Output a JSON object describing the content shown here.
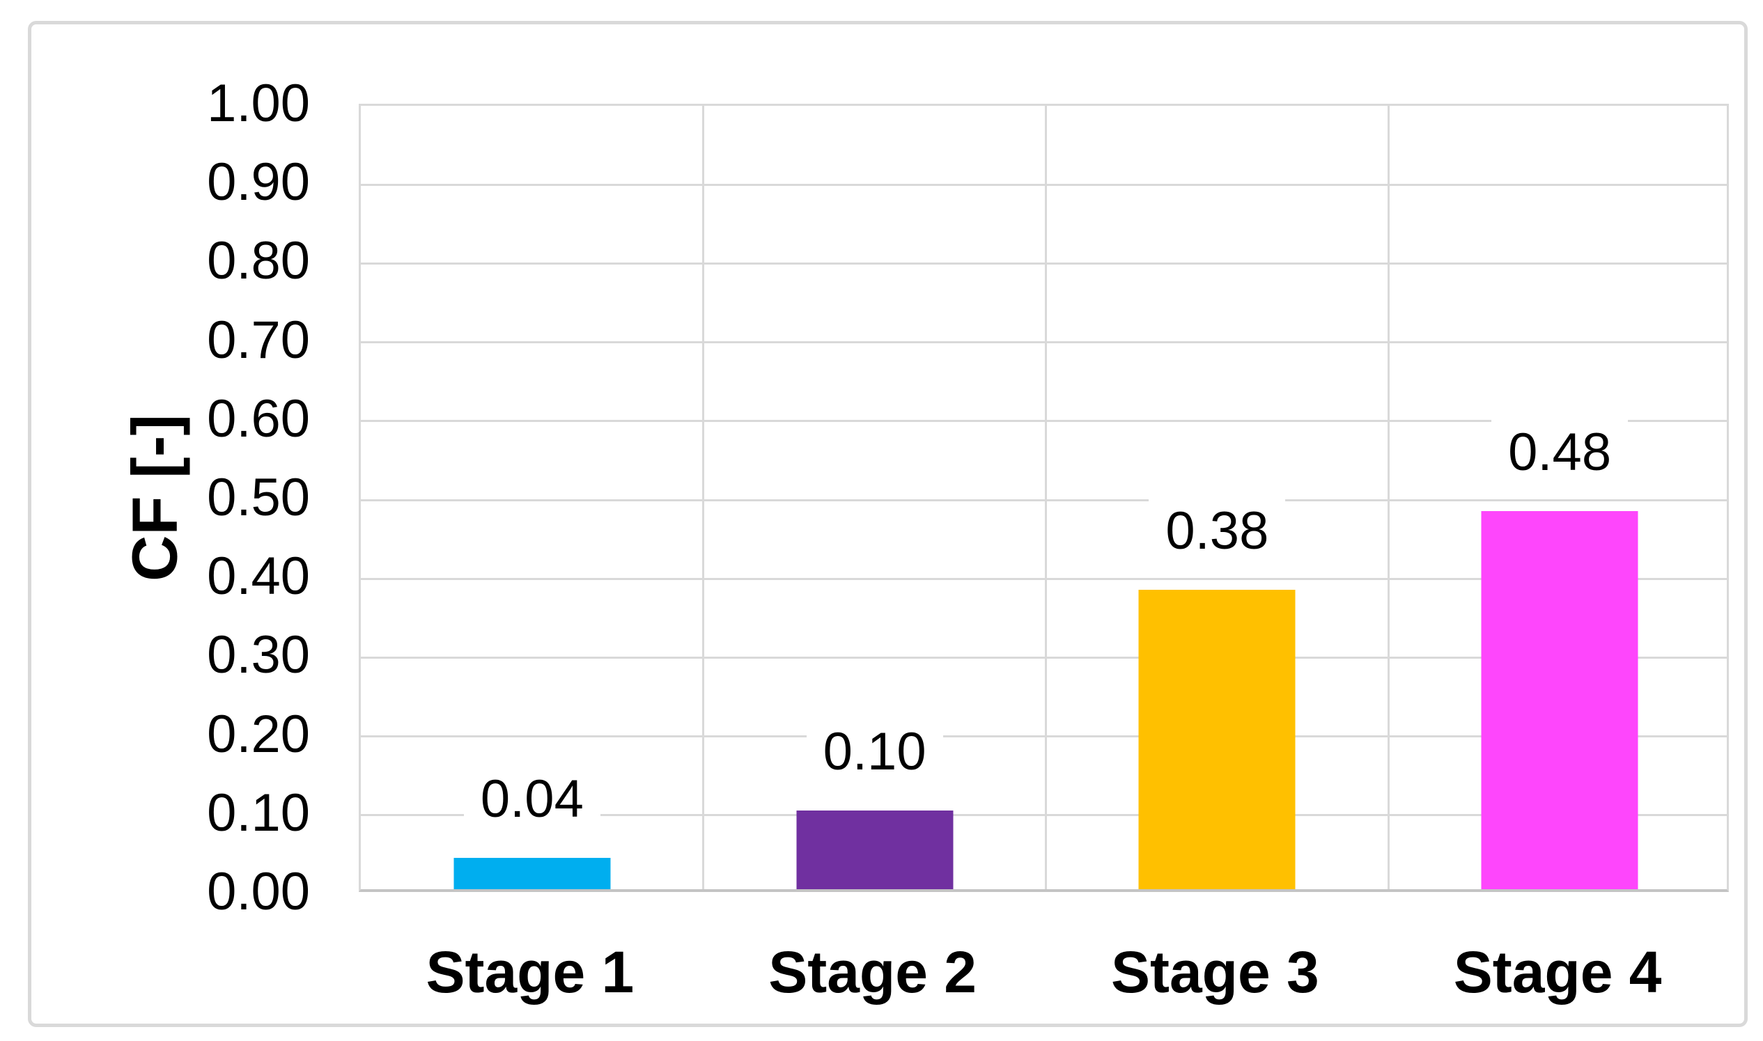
{
  "chart_data": {
    "type": "bar",
    "title": "",
    "categories": [
      "Stage 1",
      "Stage 2",
      "Stage 3",
      "Stage 4"
    ],
    "values": [
      0.04,
      0.1,
      0.38,
      0.48
    ],
    "data_labels": [
      "0.04",
      "0.10",
      "0.38",
      "0.48"
    ],
    "bar_colors": [
      "#00AEEF",
      "#7030A0",
      "#FFC000",
      "#FE46FC"
    ],
    "xlabel": "",
    "ylabel": "CF [-]",
    "ylim": [
      0,
      1
    ],
    "y_ticks": [
      {
        "value": 1.0,
        "label": "1.00"
      },
      {
        "value": 0.9,
        "label": "0.90"
      },
      {
        "value": 0.8,
        "label": "0.80"
      },
      {
        "value": 0.7,
        "label": "0.70"
      },
      {
        "value": 0.6,
        "label": "0.60"
      },
      {
        "value": 0.5,
        "label": "0.50"
      },
      {
        "value": 0.4,
        "label": "0.40"
      },
      {
        "value": 0.3,
        "label": "0.30"
      },
      {
        "value": 0.2,
        "label": "0.20"
      },
      {
        "value": 0.1,
        "label": "0.10"
      },
      {
        "value": 0.0,
        "label": "0.00"
      }
    ],
    "grid": true,
    "legend": "none",
    "gridline_color": "#D9D9D9",
    "axis_line_color": "#C4C4C4",
    "frame_border_color": "#D9D9D9",
    "text_color": "#000000"
  }
}
